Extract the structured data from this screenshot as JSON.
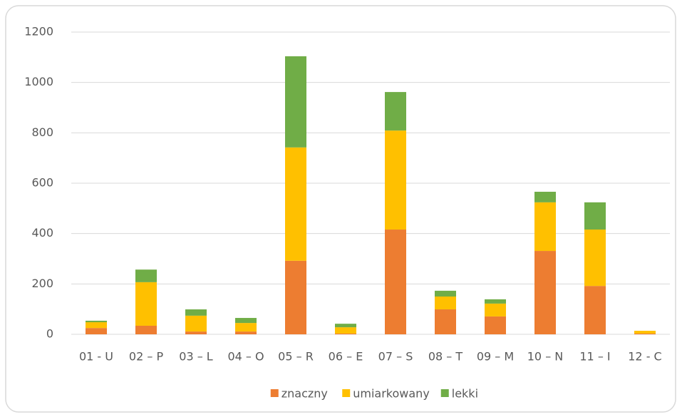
{
  "chart_data": {
    "type": "stacked_bar",
    "categories": [
      "01 - U",
      "02 – P",
      "03 – L",
      "04 – O",
      "05 – R",
      "06 – E",
      "07 – S",
      "08 – T",
      "09 – M",
      "10 – N",
      "11 – I",
      "12 - C"
    ],
    "series": [
      {
        "name": "znaczny",
        "color": "#ed7d31",
        "values": [
          25,
          34,
          11,
          11,
          292,
          3,
          416,
          99,
          71,
          331,
          192,
          3
        ]
      },
      {
        "name": "umiarkowany",
        "color": "#ffc000",
        "values": [
          23,
          173,
          63,
          34,
          450,
          25,
          393,
          51,
          51,
          193,
          224,
          11
        ]
      },
      {
        "name": "lekki",
        "color": "#70ad47",
        "values": [
          6,
          50,
          25,
          20,
          362,
          14,
          153,
          23,
          17,
          42,
          108,
          0
        ]
      }
    ],
    "ylim": [
      0,
      1200
    ],
    "yticks": [
      0,
      200,
      400,
      600,
      800,
      1000,
      1200
    ],
    "grid": true,
    "legend": "bottom"
  }
}
